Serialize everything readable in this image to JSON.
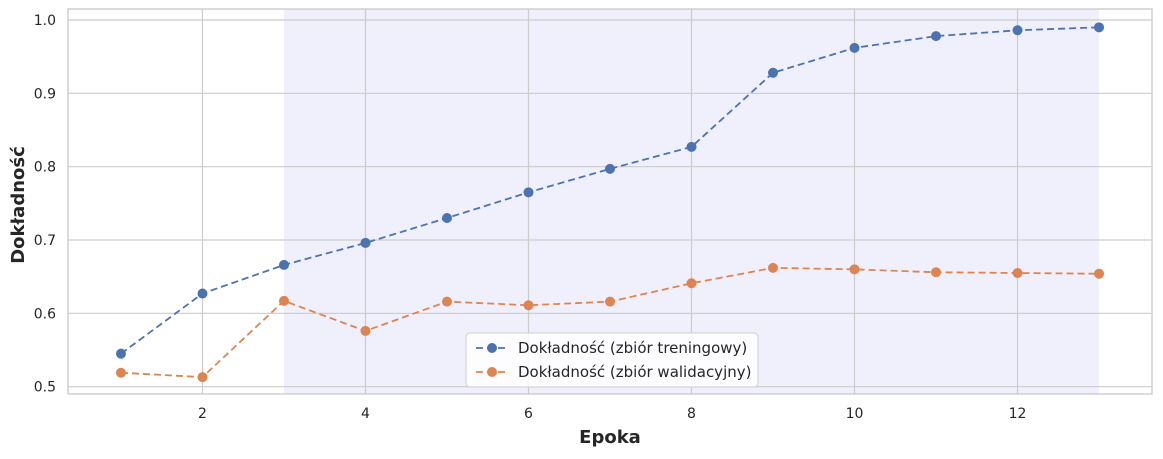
{
  "chart_data": {
    "type": "line",
    "xlabel": "Epoka",
    "ylabel": "Dokładność",
    "x": [
      1,
      2,
      3,
      4,
      5,
      6,
      7,
      8,
      9,
      10,
      11,
      12,
      13
    ],
    "xlim": [
      0.35,
      13.65
    ],
    "ylim": [
      0.49,
      1.015
    ],
    "xticks": [
      2,
      4,
      6,
      8,
      10,
      12
    ],
    "yticks": [
      0.5,
      0.6,
      0.7,
      0.8,
      0.9,
      1.0
    ],
    "xtick_labels": [
      "2",
      "4",
      "6",
      "8",
      "10",
      "12"
    ],
    "ytick_labels": [
      "0.5",
      "0.6",
      "0.7",
      "0.8",
      "0.9",
      "1.0"
    ],
    "grid": true,
    "highlight_span": {
      "x_start": 3,
      "x_end": 13,
      "color": "#e6e6fa"
    },
    "legend_position": "bottom-center",
    "series": [
      {
        "name": "Dokładność (zbiór treningowy)",
        "color": "#4c72b0",
        "linestyle": "dashed",
        "marker": "circle",
        "values": [
          0.545,
          0.627,
          0.666,
          0.696,
          0.73,
          0.765,
          0.797,
          0.827,
          0.928,
          0.962,
          0.978,
          0.986,
          0.99
        ]
      },
      {
        "name": "Dokładność (zbiór walidacyjny)",
        "color": "#dd8452",
        "linestyle": "dashed",
        "marker": "circle",
        "values": [
          0.519,
          0.513,
          0.617,
          0.576,
          0.616,
          0.611,
          0.616,
          0.641,
          0.662,
          0.66,
          0.656,
          0.655,
          0.654
        ]
      }
    ]
  }
}
